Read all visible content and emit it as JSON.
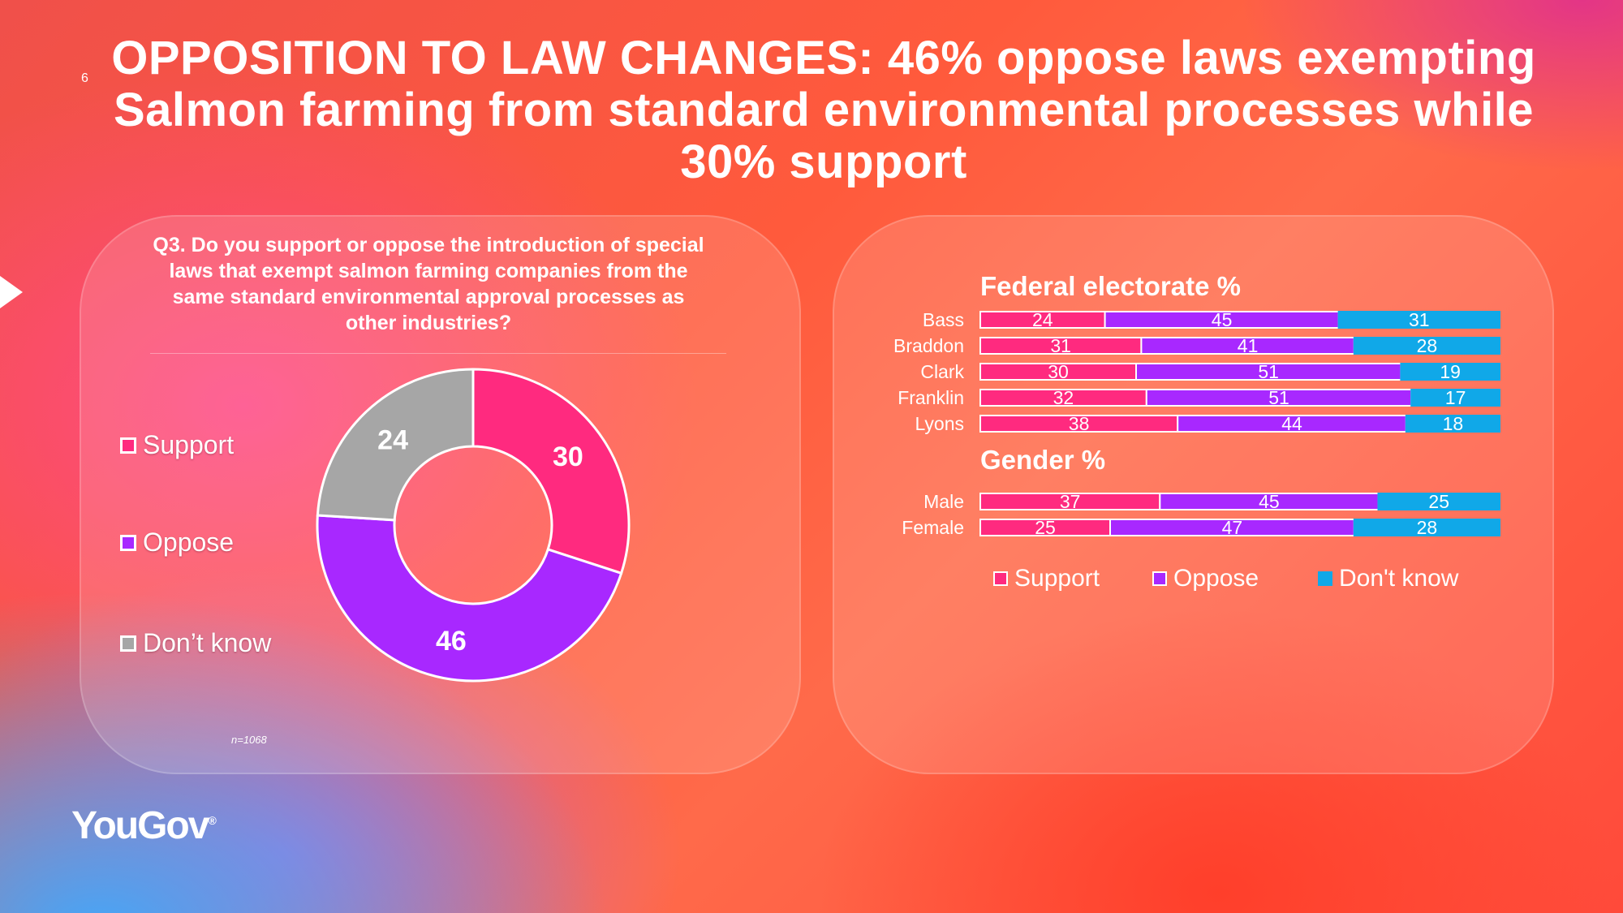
{
  "slide_number": "6",
  "title": "OPPOSITION TO LAW CHANGES: 46% oppose laws exempting Salmon farming from standard environmental processes while 30% support",
  "question": "Q3. Do you support or oppose the introduction of special laws that exempt salmon farming companies from the same standard environmental approval processes as other industries?",
  "sample_note": "n=1068",
  "logo_text": "YouGov",
  "colors": {
    "support": "#ff2a7f",
    "oppose": "#a828ff",
    "dont_know_donut": "#a6a6a6",
    "dont_know_bar": "#10a8e8"
  },
  "donut_legend": [
    {
      "label": "Support",
      "color": "#ff2a7f"
    },
    {
      "label": "Oppose",
      "color": "#a828ff"
    },
    {
      "label": "Don’t know",
      "color": "#a6a6a6"
    }
  ],
  "bar_legend": [
    {
      "label": "Support",
      "color": "#ff2a7f"
    },
    {
      "label": "Oppose",
      "color": "#a828ff"
    },
    {
      "label": "Don't know",
      "color": "#10a8e8"
    }
  ],
  "sections": {
    "electorate_title": "Federal electorate %",
    "gender_title": "Gender %"
  },
  "chart_data": [
    {
      "type": "pie",
      "variant": "donut",
      "categories": [
        "Support",
        "Oppose",
        "Don’t know"
      ],
      "values": [
        30,
        46,
        24
      ],
      "data_labels": [
        "30",
        "46",
        "24"
      ]
    },
    {
      "type": "bar",
      "orientation": "horizontal",
      "stacked": true,
      "title": "Federal electorate %",
      "categories": [
        "Bass",
        "Braddon",
        "Clark",
        "Franklin",
        "Lyons"
      ],
      "series": [
        {
          "name": "Support",
          "values": [
            24,
            31,
            30,
            32,
            38
          ]
        },
        {
          "name": "Oppose",
          "values": [
            45,
            41,
            51,
            51,
            44
          ]
        },
        {
          "name": "Don't know",
          "values": [
            31,
            28,
            19,
            17,
            18
          ]
        }
      ]
    },
    {
      "type": "bar",
      "orientation": "horizontal",
      "stacked": true,
      "title": "Gender %",
      "categories": [
        "Male",
        "Female"
      ],
      "series": [
        {
          "name": "Support",
          "values": [
            37,
            25
          ]
        },
        {
          "name": "Oppose",
          "values": [
            45,
            47
          ]
        },
        {
          "name": "Don't know",
          "values": [
            25,
            28
          ]
        }
      ]
    }
  ]
}
